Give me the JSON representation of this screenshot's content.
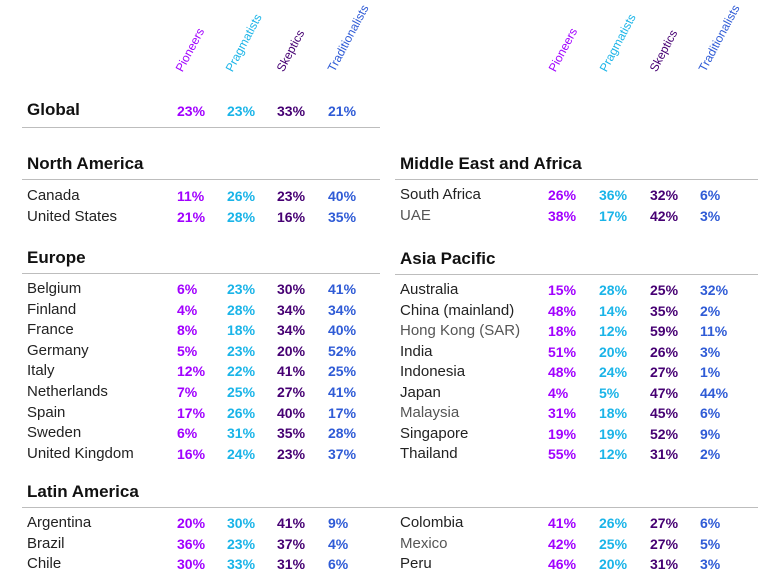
{
  "headers": [
    "Pioneers",
    "Pragmatists",
    "Skeptics",
    "Traditionalists"
  ],
  "colors": {
    "pioneers": "#a100ff",
    "pragmatists": "#1ab4e8",
    "skeptics": "#460073",
    "traditionalists": "#2f5bd6"
  },
  "global": {
    "label": "Global",
    "values": [
      "23%",
      "23%",
      "33%",
      "21%"
    ]
  },
  "left": [
    {
      "title": "North America",
      "rows": [
        {
          "name": "Canada",
          "values": [
            "11%",
            "26%",
            "23%",
            "40%"
          ]
        },
        {
          "name": "United States",
          "values": [
            "21%",
            "28%",
            "16%",
            "35%"
          ]
        }
      ]
    },
    {
      "title": "Europe",
      "rows": [
        {
          "name": "Belgium",
          "values": [
            "6%",
            "23%",
            "30%",
            "41%"
          ]
        },
        {
          "name": "Finland",
          "values": [
            "4%",
            "28%",
            "34%",
            "34%"
          ]
        },
        {
          "name": "France",
          "values": [
            "8%",
            "18%",
            "34%",
            "40%"
          ]
        },
        {
          "name": "Germany",
          "values": [
            "5%",
            "23%",
            "20%",
            "52%"
          ]
        },
        {
          "name": "Italy",
          "values": [
            "12%",
            "22%",
            "41%",
            "25%"
          ]
        },
        {
          "name": "Netherlands",
          "values": [
            "7%",
            "25%",
            "27%",
            "41%"
          ]
        },
        {
          "name": "Spain",
          "values": [
            "17%",
            "26%",
            "40%",
            "17%"
          ]
        },
        {
          "name": "Sweden",
          "values": [
            "6%",
            "31%",
            "35%",
            "28%"
          ]
        },
        {
          "name": "United Kingdom",
          "values": [
            "16%",
            "24%",
            "23%",
            "37%"
          ]
        }
      ]
    },
    {
      "title": "Latin America",
      "rows": [
        {
          "name": "Argentina",
          "values": [
            "20%",
            "30%",
            "41%",
            "9%"
          ]
        },
        {
          "name": "Brazil",
          "values": [
            "36%",
            "23%",
            "37%",
            "4%"
          ]
        },
        {
          "name": "Chile",
          "values": [
            "30%",
            "33%",
            "31%",
            "6%"
          ]
        }
      ]
    }
  ],
  "right": [
    {
      "title": "Middle East and Africa",
      "rows": [
        {
          "name": "South Africa",
          "values": [
            "26%",
            "36%",
            "32%",
            "6%"
          ]
        },
        {
          "name": "UAE",
          "values": [
            "38%",
            "17%",
            "42%",
            "3%"
          ]
        }
      ]
    },
    {
      "title": "Asia Pacific",
      "rows": [
        {
          "name": "Australia",
          "values": [
            "15%",
            "28%",
            "25%",
            "32%"
          ]
        },
        {
          "name": "China (mainland)",
          "values": [
            "48%",
            "14%",
            "35%",
            "2%"
          ]
        },
        {
          "name": "Hong Kong (SAR)",
          "values": [
            "18%",
            "12%",
            "59%",
            "11%"
          ]
        },
        {
          "name": "India",
          "values": [
            "51%",
            "20%",
            "26%",
            "3%"
          ]
        },
        {
          "name": "Indonesia",
          "values": [
            "48%",
            "24%",
            "27%",
            "1%"
          ]
        },
        {
          "name": "Japan",
          "values": [
            "4%",
            "5%",
            "47%",
            "44%"
          ]
        },
        {
          "name": "Malaysia",
          "values": [
            "31%",
            "18%",
            "45%",
            "6%"
          ]
        },
        {
          "name": "Singapore",
          "values": [
            "19%",
            "19%",
            "52%",
            "9%"
          ]
        },
        {
          "name": "Thailand",
          "values": [
            "55%",
            "12%",
            "31%",
            "2%"
          ]
        }
      ]
    },
    {
      "title": "",
      "rows": [
        {
          "name": "Colombia",
          "values": [
            "41%",
            "26%",
            "27%",
            "6%"
          ]
        },
        {
          "name": "Mexico",
          "values": [
            "42%",
            "25%",
            "27%",
            "5%"
          ]
        },
        {
          "name": "Peru",
          "values": [
            "46%",
            "20%",
            "31%",
            "3%"
          ]
        }
      ]
    }
  ]
}
